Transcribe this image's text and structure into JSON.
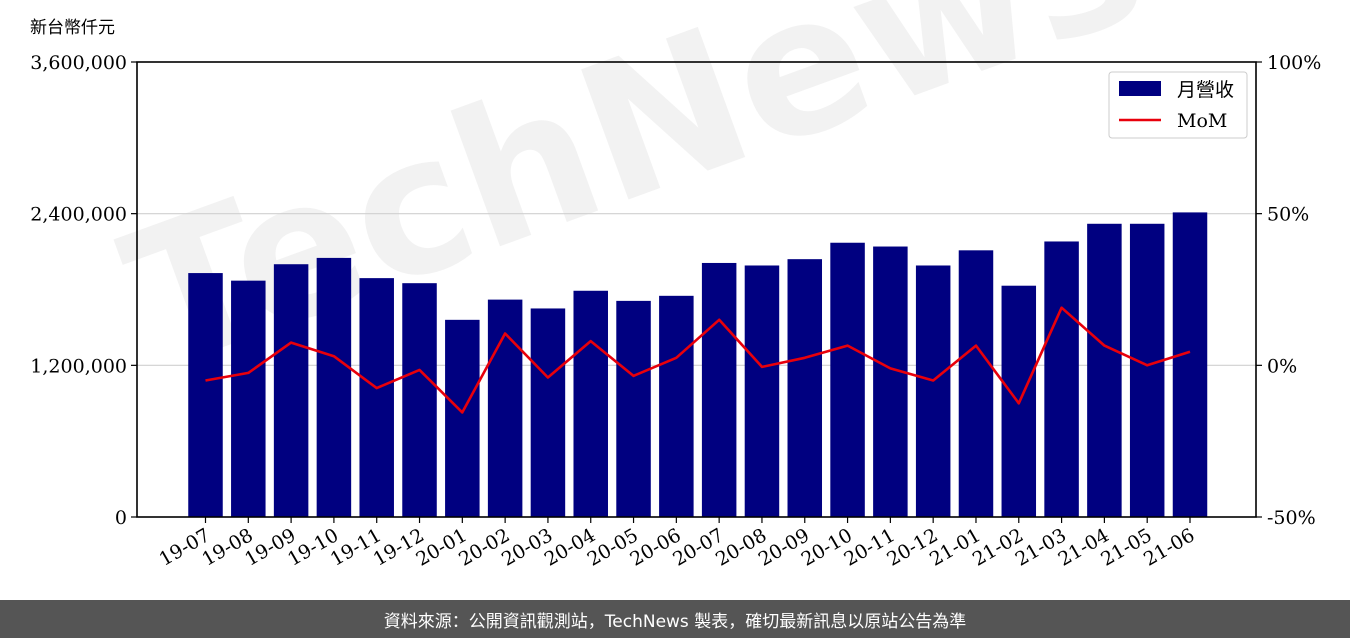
{
  "chart_data": {
    "type": "bar",
    "unit_label": "新台幣仟元",
    "categories": [
      "19-07",
      "19-08",
      "19-09",
      "19-10",
      "19-11",
      "19-12",
      "20-01",
      "20-02",
      "20-03",
      "20-04",
      "20-05",
      "20-06",
      "20-07",
      "20-08",
      "20-09",
      "20-10",
      "20-11",
      "20-12",
      "21-01",
      "21-02",
      "21-03",
      "21-04",
      "21-05",
      "21-06"
    ],
    "series": [
      {
        "name": "月營收",
        "type": "bar",
        "axis": "left",
        "color": "#000080",
        "values": [
          1930000,
          1870000,
          2000000,
          2050000,
          1890000,
          1850000,
          1560000,
          1720000,
          1650000,
          1790000,
          1710000,
          1750000,
          2010000,
          1990000,
          2040000,
          2170000,
          2140000,
          1990000,
          2110000,
          1830000,
          2180000,
          2320000,
          2320000,
          2410000
        ]
      },
      {
        "name": "MoM",
        "type": "line",
        "axis": "right",
        "color": "#e8000b",
        "values": [
          -5,
          -2.5,
          7.5,
          3,
          -7.5,
          -1.5,
          -15.5,
          10.5,
          -4,
          8,
          -3.5,
          2.5,
          15,
          -0.5,
          2.5,
          6.5,
          -1,
          -5,
          6.5,
          -12.5,
          19,
          6.5,
          0,
          4.5
        ]
      }
    ],
    "yleft": {
      "lim": [
        0,
        3600000
      ],
      "ticks": [
        0,
        1200000,
        2400000,
        3600000
      ],
      "tick_labels": [
        "0",
        "1,200,000",
        "2,400,000",
        "3,600,000"
      ]
    },
    "yright": {
      "lim": [
        -50,
        100
      ],
      "ticks": [
        -50,
        0,
        50,
        100
      ],
      "tick_labels": [
        "-50%",
        "0%",
        "50%",
        "100%"
      ]
    },
    "grid": "horizontal",
    "legend": "top-right"
  },
  "watermark": "TechNews",
  "footer": "資料來源：公開資訊觀測站，TechNews 製表，確切最新訊息以原站公告為準"
}
